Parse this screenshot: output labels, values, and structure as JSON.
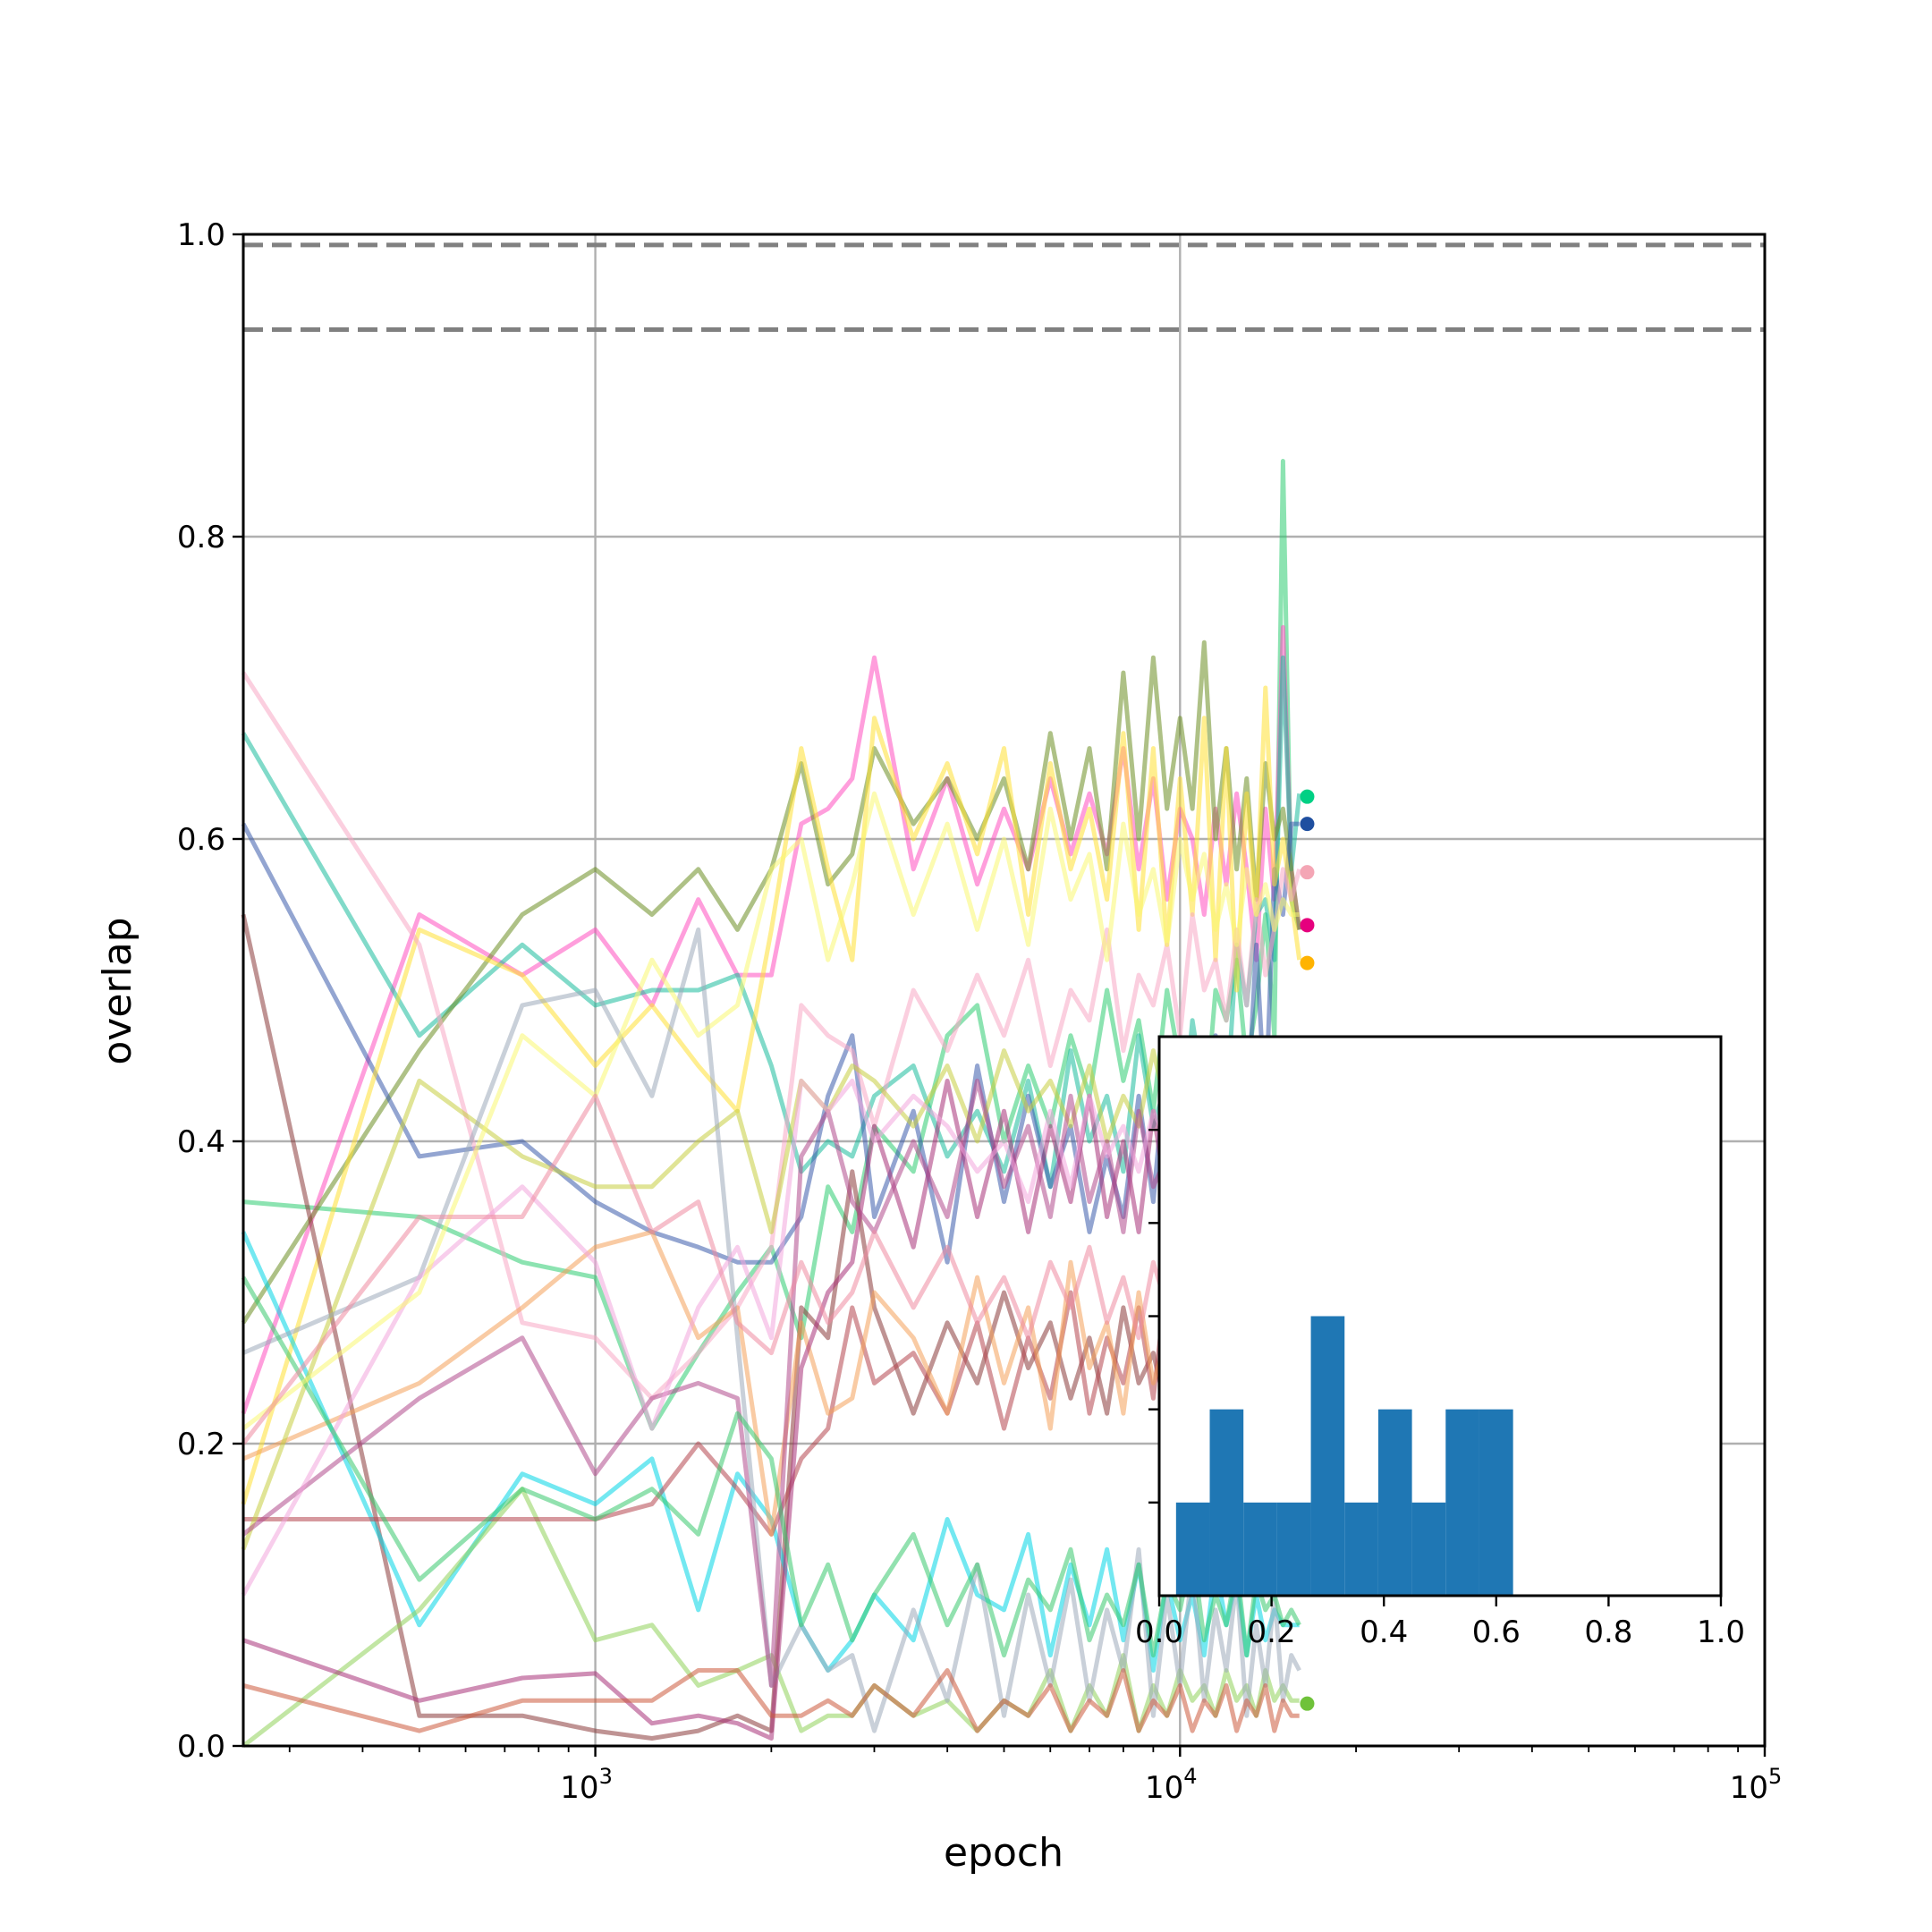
{
  "chart_data": [
    {
      "type": "line",
      "xlabel": "epoch",
      "ylabel": "overlap",
      "xscale": "log",
      "xlim": [
        250,
        100000
      ],
      "ylim": [
        0,
        1.0
      ],
      "grid": true,
      "x_ticks": [
        {
          "base": "10",
          "exp": "3"
        },
        {
          "base": "10",
          "exp": "4"
        },
        {
          "base": "10",
          "exp": "5"
        }
      ],
      "y_ticks": [
        "0.0",
        "0.2",
        "0.4",
        "0.6",
        "0.8",
        "1.0"
      ],
      "reference_lines": [
        0.993,
        0.937
      ],
      "reference_line_color": "#808080",
      "x": [
        250,
        500,
        750,
        1000,
        1250,
        1500,
        1750,
        2000,
        2250,
        2500,
        2750,
        3000,
        3500,
        4000,
        4500,
        5000,
        5500,
        6000,
        6500,
        7000,
        7500,
        8000,
        8500,
        9000,
        9500,
        10000,
        10500,
        11000,
        11500,
        12000,
        12500,
        13000,
        13500,
        14000,
        14500,
        15000,
        15500,
        16000
      ],
      "series": [
        {
          "color": "#2ecc71",
          "values": [
            0.36,
            0.35,
            0.32,
            0.31,
            0.21,
            0.26,
            0.3,
            0.33,
            0.27,
            0.37,
            0.34,
            0.41,
            0.38,
            0.47,
            0.49,
            0.4,
            0.45,
            0.41,
            0.47,
            0.43,
            0.5,
            0.44,
            0.48,
            0.42,
            0.5,
            0.45,
            0.46,
            0.41,
            0.5,
            0.48,
            0.52,
            0.45,
            0.49,
            0.55,
            0.47,
            0.85,
            0.56,
            0.54
          ]
        },
        {
          "color": "#ff4fbf",
          "values": [
            0.22,
            0.55,
            0.51,
            0.54,
            0.49,
            0.56,
            0.51,
            0.51,
            0.61,
            0.62,
            0.64,
            0.72,
            0.58,
            0.64,
            0.57,
            0.62,
            0.58,
            0.64,
            0.59,
            0.63,
            0.59,
            0.66,
            0.58,
            0.64,
            0.56,
            0.62,
            0.6,
            0.55,
            0.62,
            0.57,
            0.63,
            0.58,
            0.52,
            0.62,
            0.56,
            0.74,
            0.58,
            0.54
          ]
        },
        {
          "color": "#1abc9c",
          "values": [
            0.67,
            0.47,
            0.53,
            0.49,
            0.5,
            0.5,
            0.51,
            0.45,
            0.38,
            0.4,
            0.39,
            0.43,
            0.45,
            0.39,
            0.42,
            0.38,
            0.44,
            0.37,
            0.46,
            0.4,
            0.43,
            0.38,
            0.47,
            0.41,
            0.44,
            0.39,
            0.48,
            0.43,
            0.46,
            0.42,
            0.53,
            0.49,
            0.55,
            0.56,
            0.52,
            0.72,
            0.58,
            0.63
          ]
        },
        {
          "color": "#6b8e23",
          "values": [
            0.28,
            0.46,
            0.55,
            0.58,
            0.55,
            0.58,
            0.54,
            0.58,
            0.65,
            0.57,
            0.59,
            0.66,
            0.61,
            0.64,
            0.6,
            0.64,
            0.58,
            0.67,
            0.6,
            0.66,
            0.58,
            0.71,
            0.6,
            0.72,
            0.62,
            0.68,
            0.62,
            0.73,
            0.6,
            0.66,
            0.58,
            0.64,
            0.56,
            0.65,
            0.6,
            0.62,
            0.58,
            0.54
          ]
        },
        {
          "color": "#3b5bab",
          "values": [
            0.61,
            0.39,
            0.4,
            0.36,
            0.34,
            0.33,
            0.32,
            0.32,
            0.35,
            0.43,
            0.47,
            0.35,
            0.42,
            0.32,
            0.45,
            0.36,
            0.43,
            0.37,
            0.41,
            0.34,
            0.39,
            0.35,
            0.43,
            0.36,
            0.46,
            0.37,
            0.44,
            0.39,
            0.47,
            0.4,
            0.45,
            0.41,
            0.53,
            0.42,
            0.58,
            0.55,
            0.61,
            0.61
          ]
        },
        {
          "color": "#ffe033",
          "values": [
            0.16,
            0.54,
            0.51,
            0.45,
            0.49,
            0.45,
            0.42,
            0.54,
            0.66,
            0.58,
            0.52,
            0.68,
            0.6,
            0.65,
            0.59,
            0.66,
            0.55,
            0.65,
            0.58,
            0.62,
            0.56,
            0.67,
            0.54,
            0.66,
            0.53,
            0.64,
            0.55,
            0.68,
            0.52,
            0.66,
            0.5,
            0.63,
            0.55,
            0.7,
            0.57,
            0.6,
            0.56,
            0.52
          ]
        },
        {
          "color": "#f7a8c4",
          "values": [
            0.71,
            0.53,
            0.28,
            0.27,
            0.23,
            0.26,
            0.29,
            0.33,
            0.49,
            0.47,
            0.46,
            0.41,
            0.5,
            0.46,
            0.51,
            0.47,
            0.52,
            0.45,
            0.5,
            0.48,
            0.54,
            0.46,
            0.51,
            0.49,
            0.53,
            0.47,
            0.55,
            0.5,
            0.52,
            0.48,
            0.54,
            0.49,
            0.56,
            0.51,
            0.54,
            0.58,
            0.56,
            0.58
          ]
        },
        {
          "color": "#8b3a3a",
          "values": [
            0.55,
            0.02,
            0.02,
            0.01,
            0.005,
            0.01,
            0.02,
            0.01,
            0.29,
            0.27,
            0.38,
            0.29,
            0.22,
            0.28,
            0.24,
            0.3,
            0.25,
            0.28,
            0.23,
            0.27,
            0.22,
            0.29,
            0.24,
            0.26,
            0.22,
            0.25,
            0.21,
            0.24,
            0.22,
            0.26,
            0.23,
            0.25,
            0.21,
            0.27,
            0.22,
            0.24,
            0.22,
            0.23
          ]
        },
        {
          "color": "#00d5e6",
          "values": [
            0.34,
            0.08,
            0.18,
            0.16,
            0.19,
            0.09,
            0.18,
            0.15,
            0.08,
            0.05,
            0.07,
            0.1,
            0.07,
            0.15,
            0.1,
            0.09,
            0.14,
            0.06,
            0.12,
            0.08,
            0.13,
            0.07,
            0.12,
            0.05,
            0.11,
            0.07,
            0.1,
            0.06,
            0.12,
            0.08,
            0.11,
            0.06,
            0.1,
            0.07,
            0.09,
            0.08,
            0.08,
            0.08
          ]
        },
        {
          "color": "#8fd15a",
          "values": [
            0.0,
            0.09,
            0.17,
            0.07,
            0.08,
            0.04,
            0.05,
            0.06,
            0.01,
            0.02,
            0.02,
            0.04,
            0.02,
            0.03,
            0.01,
            0.03,
            0.02,
            0.05,
            0.01,
            0.04,
            0.02,
            0.06,
            0.01,
            0.04,
            0.02,
            0.05,
            0.03,
            0.04,
            0.02,
            0.05,
            0.03,
            0.04,
            0.02,
            0.05,
            0.03,
            0.04,
            0.03,
            0.03
          ]
        },
        {
          "color": "#b5464f",
          "values": [
            0.15,
            0.15,
            0.15,
            0.15,
            0.16,
            0.2,
            0.17,
            0.14,
            0.19,
            0.21,
            0.29,
            0.24,
            0.26,
            0.22,
            0.28,
            0.21,
            0.27,
            0.23,
            0.3,
            0.22,
            0.27,
            0.24,
            0.29,
            0.23,
            0.31,
            0.25,
            0.28,
            0.22,
            0.3,
            0.24,
            0.27,
            0.23,
            0.29,
            0.25,
            0.28,
            0.24,
            0.26,
            0.25
          ]
        },
        {
          "color": "#f4a05a",
          "values": [
            0.19,
            0.24,
            0.29,
            0.33,
            0.34,
            0.27,
            0.29,
            0.14,
            0.28,
            0.22,
            0.23,
            0.3,
            0.27,
            0.22,
            0.31,
            0.24,
            0.29,
            0.21,
            0.32,
            0.25,
            0.28,
            0.22,
            0.3,
            0.24,
            0.27,
            0.21,
            0.29,
            0.23,
            0.31,
            0.25,
            0.28,
            0.22,
            0.3,
            0.26,
            0.29,
            0.24,
            0.27,
            0.26
          ]
        },
        {
          "color": "#c6ce3f",
          "values": [
            0.13,
            0.44,
            0.39,
            0.37,
            0.37,
            0.4,
            0.42,
            0.34,
            0.44,
            0.42,
            0.45,
            0.44,
            0.41,
            0.45,
            0.4,
            0.46,
            0.42,
            0.44,
            0.41,
            0.45,
            0.4,
            0.43,
            0.41,
            0.46,
            0.42,
            0.44,
            0.4,
            0.45,
            0.41,
            0.43,
            0.4,
            0.44,
            0.41,
            0.45,
            0.42,
            0.43,
            0.41,
            0.42
          ]
        },
        {
          "color": "#9da9b9",
          "values": [
            0.26,
            0.31,
            0.49,
            0.5,
            0.43,
            0.54,
            0.27,
            0.04,
            0.08,
            0.05,
            0.06,
            0.01,
            0.09,
            0.03,
            0.12,
            0.02,
            0.1,
            0.04,
            0.11,
            0.03,
            0.09,
            0.05,
            0.13,
            0.02,
            0.1,
            0.04,
            0.12,
            0.03,
            0.09,
            0.05,
            0.11,
            0.02,
            0.08,
            0.04,
            0.1,
            0.03,
            0.06,
            0.05
          ]
        },
        {
          "color": "#a83279",
          "values": [
            0.07,
            0.03,
            0.045,
            0.048,
            0.015,
            0.02,
            0.015,
            0.005,
            0.25,
            0.3,
            0.32,
            0.41,
            0.33,
            0.44,
            0.35,
            0.42,
            0.34,
            0.41,
            0.36,
            0.43,
            0.35,
            0.4,
            0.34,
            0.42,
            0.36,
            0.41,
            0.35,
            0.43,
            0.34,
            0.4,
            0.36,
            0.42,
            0.35,
            0.41,
            0.34,
            0.4,
            0.36,
            0.38
          ]
        },
        {
          "color": "#b04a8c",
          "values": [
            0.14,
            0.23,
            0.27,
            0.18,
            0.23,
            0.24,
            0.23,
            0.04,
            0.39,
            0.42,
            0.36,
            0.34,
            0.4,
            0.35,
            0.44,
            0.37,
            0.41,
            0.35,
            0.43,
            0.36,
            0.4,
            0.34,
            0.42,
            0.37,
            0.39,
            0.35,
            0.41,
            0.36,
            0.43,
            0.37,
            0.4,
            0.35,
            0.42,
            0.36,
            0.39,
            0.37,
            0.38,
            0.36
          ]
        },
        {
          "color": "#f2a6dd",
          "values": [
            0.1,
            0.31,
            0.37,
            0.32,
            0.21,
            0.29,
            0.33,
            0.27,
            0.44,
            0.42,
            0.44,
            0.4,
            0.43,
            0.41,
            0.38,
            0.4,
            0.36,
            0.42,
            0.37,
            0.43,
            0.39,
            0.41,
            0.38,
            0.42,
            0.4,
            0.38,
            0.41,
            0.37,
            0.39,
            0.42,
            0.38,
            0.4,
            0.37,
            0.41,
            0.39,
            0.4,
            0.38,
            0.39
          ]
        },
        {
          "color": "#cc5a3d",
          "values": [
            0.04,
            0.01,
            0.03,
            0.03,
            0.03,
            0.05,
            0.05,
            0.02,
            0.02,
            0.03,
            0.02,
            0.04,
            0.02,
            0.05,
            0.01,
            0.03,
            0.02,
            0.04,
            0.01,
            0.03,
            0.02,
            0.05,
            0.01,
            0.03,
            0.02,
            0.04,
            0.01,
            0.03,
            0.02,
            0.04,
            0.01,
            0.03,
            0.02,
            0.04,
            0.01,
            0.03,
            0.02,
            0.02
          ]
        },
        {
          "color": "#39c96d",
          "values": [
            0.31,
            0.11,
            0.17,
            0.15,
            0.17,
            0.14,
            0.22,
            0.19,
            0.08,
            0.12,
            0.07,
            0.1,
            0.14,
            0.08,
            0.12,
            0.06,
            0.11,
            0.09,
            0.13,
            0.07,
            0.1,
            0.08,
            0.12,
            0.06,
            0.11,
            0.09,
            0.13,
            0.07,
            0.1,
            0.08,
            0.12,
            0.06,
            0.11,
            0.09,
            0.1,
            0.08,
            0.09,
            0.08
          ]
        },
        {
          "color": "#f9f871",
          "values": [
            0.21,
            0.3,
            0.47,
            0.43,
            0.52,
            0.47,
            0.49,
            0.58,
            0.6,
            0.52,
            0.57,
            0.63,
            0.55,
            0.61,
            0.54,
            0.6,
            0.53,
            0.62,
            0.56,
            0.59,
            0.52,
            0.61,
            0.55,
            0.58,
            0.53,
            0.6,
            0.56,
            0.59,
            0.54,
            0.57,
            0.53,
            0.58,
            0.55,
            0.57,
            0.54,
            0.56,
            0.55,
            0.55
          ]
        },
        {
          "color": "#ef8aa0",
          "values": [
            0.2,
            0.35,
            0.35,
            0.43,
            0.34,
            0.36,
            0.28,
            0.26,
            0.32,
            0.28,
            0.3,
            0.34,
            0.29,
            0.33,
            0.28,
            0.31,
            0.27,
            0.32,
            0.29,
            0.33,
            0.28,
            0.31,
            0.27,
            0.32,
            0.29,
            0.3,
            0.28,
            0.32,
            0.29,
            0.31,
            0.28,
            0.3,
            0.27,
            0.31,
            0.29,
            0.3,
            0.28,
            0.29
          ]
        }
      ],
      "end_markers": [
        {
          "color": "#00d084",
          "value": 0.628
        },
        {
          "color": "#1f4fa0",
          "value": 0.61
        },
        {
          "color": "#f4a6b5",
          "value": 0.578
        },
        {
          "color": "#e6007e",
          "value": 0.543
        },
        {
          "color": "#ffb300",
          "value": 0.518
        },
        {
          "color": "#6fc23a",
          "value": 0.028
        }
      ],
      "end_marker_x": 16500
    },
    {
      "type": "bar",
      "chart": "inset histogram",
      "xlim": [
        0.0,
        1.0
      ],
      "x_ticks": [
        "0.0",
        "0.2",
        "0.4",
        "0.6",
        "0.8",
        "1.0"
      ],
      "ylim": [
        0,
        6
      ],
      "bar_color": "#1f77b4",
      "bins": [
        0.03,
        0.09,
        0.15,
        0.21,
        0.27,
        0.33,
        0.39,
        0.45,
        0.51,
        0.57,
        0.63
      ],
      "counts": [
        1,
        2,
        1,
        1,
        3,
        1,
        2,
        1,
        2,
        2
      ]
    }
  ]
}
